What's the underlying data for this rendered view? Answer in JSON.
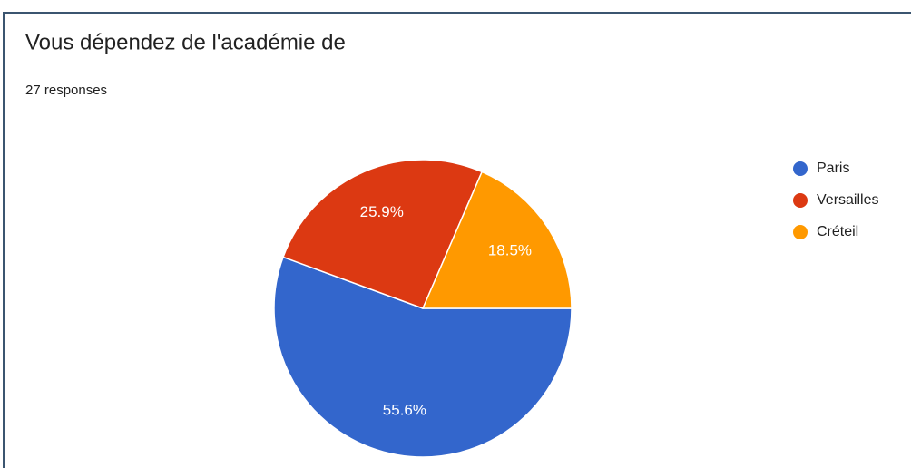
{
  "chart_data": {
    "type": "pie",
    "title": "Vous dépendez de l'académie de",
    "subtitle": "27 responses",
    "categories": [
      "Paris",
      "Versailles",
      "Créteil"
    ],
    "values": [
      55.6,
      25.9,
      18.5
    ],
    "value_labels": [
      "55.6%",
      "25.9%",
      "18.5%"
    ],
    "colors": [
      "#3366cc",
      "#dc3912",
      "#ff9900"
    ],
    "legend": "right"
  }
}
